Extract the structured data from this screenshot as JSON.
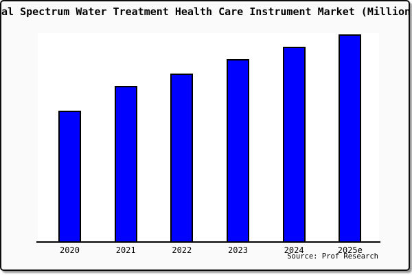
{
  "chart": {
    "title": "al Spectrum Water Treatment Health Care Instrument Market (Million",
    "source": "Source: Prof Research"
  },
  "colors": {
    "bar_fill": "#0000ff",
    "bar_border": "#000000",
    "frame_background": "#fafafa",
    "plot_background": "#ffffff",
    "axis": "#000000",
    "text": "#000000"
  },
  "chart_data": {
    "type": "bar",
    "title": "al Spectrum Water Treatment Health Care Instrument Market (Million",
    "categories": [
      "2020",
      "2021",
      "2022",
      "2023",
      "2024",
      "2025e"
    ],
    "values": [
      63,
      75,
      81,
      88,
      94,
      100
    ],
    "value_basis": "relative index estimated from bar heights, 2025e = 100; y-axis has no tick labels in image",
    "xlabel": "",
    "ylabel": "",
    "ylim": [
      0,
      101
    ],
    "grid": false,
    "legend": false,
    "source": "Source: Prof Research"
  }
}
